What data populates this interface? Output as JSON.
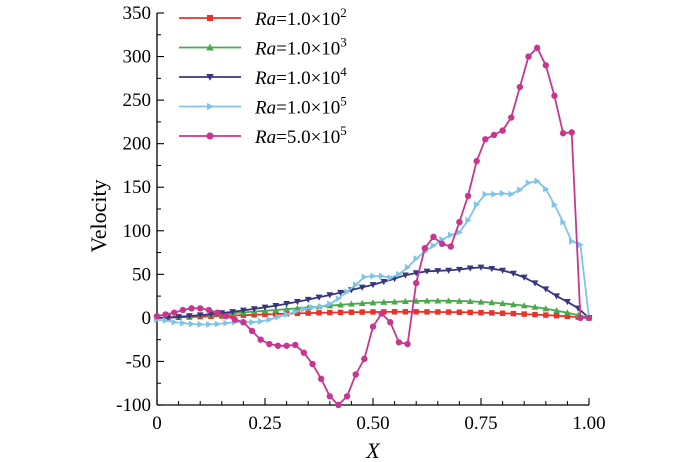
{
  "chart_data": {
    "type": "line",
    "xlabel": "X",
    "ylabel": "Velocity",
    "xlim": [
      0,
      1
    ],
    "ylim": [
      -100,
      350
    ],
    "x_ticks": [
      0,
      0.25,
      0.5,
      0.75,
      1.0
    ],
    "x_tick_labels": [
      "0",
      "0.25",
      "0.50",
      "0.75",
      "1.00"
    ],
    "y_ticks": [
      -100,
      -50,
      0,
      50,
      100,
      150,
      200,
      250,
      300,
      350
    ],
    "y_tick_labels": [
      "-100",
      "-50",
      "0",
      "50",
      "100",
      "150",
      "200",
      "250",
      "300",
      "350"
    ],
    "grid": false,
    "legend_position": "top-left",
    "series": [
      {
        "legend": {
          "prefix": "Ra",
          "mid": "=1.0×10",
          "exp": "2"
        },
        "color": "#e8332a",
        "marker": "square",
        "x": [
          0,
          0.025,
          0.05,
          0.075,
          0.1,
          0.125,
          0.15,
          0.175,
          0.2,
          0.225,
          0.25,
          0.275,
          0.3,
          0.325,
          0.35,
          0.375,
          0.4,
          0.425,
          0.45,
          0.475,
          0.5,
          0.525,
          0.55,
          0.575,
          0.6,
          0.625,
          0.65,
          0.675,
          0.7,
          0.725,
          0.75,
          0.775,
          0.8,
          0.825,
          0.85,
          0.875,
          0.9,
          0.925,
          0.95,
          0.975,
          1.0
        ],
        "y": [
          0,
          0.3,
          0.6,
          1.0,
          1.4,
          1.8,
          2.2,
          2.7,
          3.1,
          3.6,
          4.0,
          4.4,
          4.8,
          5.2,
          5.5,
          5.8,
          6.1,
          6.3,
          6.5,
          6.7,
          6.8,
          6.9,
          7.0,
          7.0,
          7.0,
          6.9,
          6.8,
          6.7,
          6.5,
          6.3,
          6.0,
          5.7,
          5.3,
          4.9,
          4.4,
          3.8,
          3.2,
          2.5,
          1.7,
          0.9,
          0
        ]
      },
      {
        "legend": {
          "prefix": "Ra",
          "mid": "=1.0×10",
          "exp": "3"
        },
        "color": "#4ca84c",
        "marker": "triangle-up",
        "x": [
          0,
          0.025,
          0.05,
          0.075,
          0.1,
          0.125,
          0.15,
          0.175,
          0.2,
          0.225,
          0.25,
          0.275,
          0.3,
          0.325,
          0.35,
          0.375,
          0.4,
          0.425,
          0.45,
          0.475,
          0.5,
          0.525,
          0.55,
          0.575,
          0.6,
          0.625,
          0.65,
          0.675,
          0.7,
          0.725,
          0.75,
          0.775,
          0.8,
          0.825,
          0.85,
          0.875,
          0.9,
          0.925,
          0.95,
          0.975,
          1.0
        ],
        "y": [
          0,
          0.5,
          1.2,
          2.0,
          2.8,
          3.6,
          4.5,
          5.4,
          6.3,
          7.2,
          8.1,
          9.0,
          10.0,
          11.0,
          12.0,
          13.0,
          14.0,
          15.0,
          16.0,
          16.8,
          17.5,
          18.0,
          18.5,
          19.0,
          19.4,
          19.6,
          19.7,
          19.6,
          19.4,
          19.0,
          18.4,
          17.6,
          16.6,
          15.4,
          14.0,
          12.4,
          10.6,
          8.4,
          6.0,
          3.2,
          0
        ]
      },
      {
        "legend": {
          "prefix": "Ra",
          "mid": "=1.0×10",
          "exp": "4"
        },
        "color": "#39357f",
        "marker": "triangle-down",
        "x": [
          0,
          0.025,
          0.05,
          0.075,
          0.1,
          0.125,
          0.15,
          0.175,
          0.2,
          0.225,
          0.25,
          0.275,
          0.3,
          0.325,
          0.35,
          0.375,
          0.4,
          0.425,
          0.45,
          0.475,
          0.5,
          0.525,
          0.55,
          0.575,
          0.6,
          0.625,
          0.65,
          0.675,
          0.7,
          0.725,
          0.75,
          0.775,
          0.8,
          0.825,
          0.85,
          0.875,
          0.9,
          0.925,
          0.95,
          0.975,
          1.0
        ],
        "y": [
          0,
          0.5,
          1.2,
          2.2,
          3.2,
          4.3,
          5.6,
          7.0,
          8.6,
          10.3,
          12.1,
          14.0,
          16.2,
          18.5,
          21.0,
          23.6,
          26.3,
          29.0,
          32.0,
          35.0,
          38.0,
          41.5,
          45.0,
          49.0,
          51.5,
          53.5,
          54.0,
          54.5,
          55.5,
          57.0,
          58.0,
          56.5,
          54.5,
          51.0,
          46.5,
          40.0,
          33.0,
          25.0,
          18.5,
          11.0,
          0
        ]
      },
      {
        "legend": {
          "prefix": "Ra",
          "mid": "=1.0×10",
          "exp": "5"
        },
        "color": "#7fc4e8",
        "marker": "triangle-right",
        "x": [
          0,
          0.02,
          0.04,
          0.06,
          0.08,
          0.1,
          0.12,
          0.14,
          0.16,
          0.18,
          0.2,
          0.22,
          0.24,
          0.26,
          0.28,
          0.3,
          0.32,
          0.34,
          0.36,
          0.38,
          0.4,
          0.42,
          0.44,
          0.46,
          0.48,
          0.5,
          0.52,
          0.54,
          0.56,
          0.58,
          0.6,
          0.62,
          0.64,
          0.66,
          0.68,
          0.7,
          0.72,
          0.74,
          0.76,
          0.78,
          0.8,
          0.82,
          0.84,
          0.86,
          0.88,
          0.9,
          0.92,
          0.94,
          0.96,
          0.98,
          1.0
        ],
        "y": [
          -2,
          -3,
          -5,
          -6,
          -7,
          -7.5,
          -7.5,
          -7,
          -6,
          -5,
          -5,
          -5,
          -4,
          -2,
          1,
          4,
          7,
          10,
          12,
          13,
          16,
          22,
          30,
          38,
          47,
          48,
          48,
          46,
          50,
          58,
          68,
          76,
          83,
          90,
          95,
          98,
          112,
          130,
          142,
          142,
          143,
          142,
          147,
          155,
          157,
          148,
          130,
          110,
          88,
          84,
          0
        ]
      },
      {
        "legend": {
          "prefix": "Ra",
          "mid": "=5.0×10",
          "exp": "5"
        },
        "color": "#c8368f",
        "marker": "circle",
        "x": [
          0,
          0.02,
          0.04,
          0.06,
          0.08,
          0.1,
          0.12,
          0.14,
          0.16,
          0.18,
          0.2,
          0.22,
          0.24,
          0.26,
          0.28,
          0.3,
          0.32,
          0.34,
          0.36,
          0.38,
          0.4,
          0.42,
          0.44,
          0.46,
          0.48,
          0.5,
          0.52,
          0.54,
          0.56,
          0.58,
          0.6,
          0.62,
          0.64,
          0.66,
          0.68,
          0.7,
          0.72,
          0.74,
          0.76,
          0.78,
          0.8,
          0.82,
          0.84,
          0.86,
          0.88,
          0.9,
          0.92,
          0.94,
          0.96,
          0.98,
          1.0
        ],
        "y": [
          2,
          4,
          6,
          9,
          11,
          11,
          9,
          6,
          2,
          -2,
          -5,
          -15,
          -25,
          -30,
          -32,
          -32,
          -31,
          -40,
          -53,
          -70,
          -90,
          -100,
          -90,
          -65,
          -47,
          -10,
          5,
          -5,
          -28,
          -30,
          40,
          80,
          93,
          85,
          82,
          110,
          140,
          180,
          205,
          210,
          215,
          230,
          265,
          300,
          310,
          290,
          255,
          212,
          213,
          0,
          0
        ]
      }
    ]
  }
}
